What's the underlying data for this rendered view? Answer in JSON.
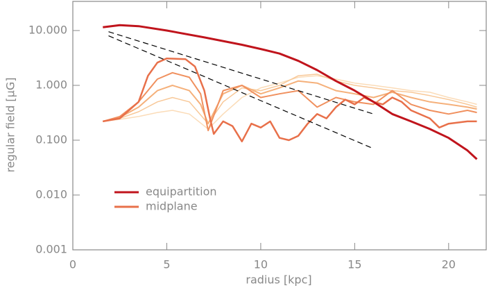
{
  "chart_data": {
    "type": "line",
    "xlabel": "radius [kpc]",
    "ylabel": "regular field [μG]",
    "xlim": [
      0,
      22
    ],
    "xticks": [
      0,
      5,
      10,
      15,
      20
    ],
    "ylim": [
      0.001,
      34
    ],
    "log_y": true,
    "yticks": [
      {
        "value": 0.001,
        "label": "0.001"
      },
      {
        "value": 0.01,
        "label": "0.010"
      },
      {
        "value": 0.1,
        "label": "0.100"
      },
      {
        "value": 1,
        "label": "1.000"
      },
      {
        "value": 10,
        "label": "10.000"
      }
    ],
    "legend": "bottom-left",
    "series": [
      {
        "color": "#fbdcb8",
        "width": 1.5,
        "x": [
          1.6,
          2.5,
          3.5,
          4.5,
          5.3,
          6.2,
          7.2,
          8,
          9,
          10,
          11,
          12,
          13,
          14,
          15,
          16,
          17,
          18,
          19,
          20,
          21,
          21.5
        ],
        "values": [
          0.22,
          0.24,
          0.27,
          0.32,
          0.35,
          0.3,
          0.16,
          0.3,
          0.6,
          0.9,
          1.1,
          1.4,
          1.5,
          1.3,
          1.1,
          1.0,
          0.9,
          0.8,
          0.75,
          0.6,
          0.5,
          0.45
        ]
      },
      {
        "color": "#f8c898",
        "width": 1.5,
        "x": [
          1.6,
          2.5,
          3.5,
          4.5,
          5.3,
          6.2,
          7.2,
          8,
          9,
          10,
          11,
          12,
          13,
          14,
          15,
          16,
          17,
          18,
          19,
          20,
          21,
          21.5
        ],
        "values": [
          0.22,
          0.25,
          0.33,
          0.5,
          0.6,
          0.5,
          0.2,
          0.5,
          0.9,
          0.8,
          1.0,
          1.5,
          1.6,
          1.2,
          1.0,
          0.9,
          0.8,
          0.75,
          0.65,
          0.55,
          0.45,
          0.4
        ]
      },
      {
        "color": "#f5b07a",
        "width": 2,
        "x": [
          1.6,
          2.5,
          3.5,
          4.5,
          5.3,
          6.2,
          6.8,
          7.2,
          8,
          9,
          10,
          11,
          12,
          13,
          14,
          15,
          16,
          17,
          18,
          19,
          20,
          21,
          21.5
        ],
        "values": [
          0.22,
          0.26,
          0.4,
          0.8,
          1.0,
          0.8,
          0.45,
          0.2,
          0.7,
          1.0,
          0.7,
          0.9,
          1.2,
          1.1,
          0.8,
          0.7,
          0.6,
          0.75,
          0.6,
          0.5,
          0.45,
          0.4,
          0.37
        ]
      },
      {
        "color": "#f0905e",
        "width": 2,
        "x": [
          1.6,
          2.5,
          3.5,
          4.5,
          5.3,
          6.2,
          6.8,
          7.2,
          8,
          9,
          10,
          11,
          12,
          13,
          14,
          15,
          16,
          17,
          18,
          19,
          20,
          21,
          21.5
        ],
        "values": [
          0.22,
          0.27,
          0.5,
          1.3,
          1.7,
          1.4,
          0.7,
          0.15,
          0.8,
          1.0,
          0.6,
          0.7,
          0.8,
          0.4,
          0.6,
          0.5,
          0.45,
          0.8,
          0.45,
          0.35,
          0.3,
          0.35,
          0.32
        ]
      },
      {
        "name": "midplane",
        "color": "#e8704a",
        "width": 2.5,
        "x": [
          1.6,
          2.5,
          3.5,
          4,
          4.5,
          5,
          6,
          6.5,
          7,
          7.3,
          7.5,
          8,
          8.5,
          9,
          9.5,
          10,
          10.5,
          11,
          11.5,
          12,
          12.5,
          13,
          13.5,
          14,
          14.5,
          15,
          15.5,
          16,
          16.5,
          17,
          17.5,
          18,
          19,
          19.5,
          20,
          21,
          21.5
        ],
        "values": [
          0.22,
          0.25,
          0.5,
          1.5,
          2.6,
          3.1,
          3.0,
          2.2,
          0.8,
          0.25,
          0.13,
          0.22,
          0.18,
          0.095,
          0.2,
          0.17,
          0.22,
          0.11,
          0.1,
          0.12,
          0.2,
          0.3,
          0.25,
          0.4,
          0.55,
          0.45,
          0.6,
          0.5,
          0.45,
          0.6,
          0.5,
          0.35,
          0.25,
          0.17,
          0.2,
          0.22,
          0.22
        ]
      },
      {
        "name": "equipartition",
        "color": "#c0141c",
        "width": 3,
        "x": [
          1.6,
          2.5,
          3.5,
          5,
          7,
          9,
          10,
          11,
          12,
          13,
          14,
          15,
          16,
          17,
          18,
          19,
          20,
          21,
          21.5
        ],
        "values": [
          11.5,
          12.5,
          12,
          10,
          7.5,
          5.5,
          4.6,
          3.8,
          2.8,
          1.9,
          1.2,
          0.8,
          0.5,
          0.3,
          0.22,
          0.16,
          0.11,
          0.065,
          0.045
        ]
      },
      {
        "color": "#000000",
        "width": 1.2,
        "dashed": true,
        "x": [
          1.9,
          16
        ],
        "values": [
          9.5,
          0.3
        ]
      },
      {
        "color": "#000000",
        "width": 1.2,
        "dashed": true,
        "x": [
          1.9,
          16
        ],
        "values": [
          8,
          0.07
        ]
      }
    ]
  }
}
